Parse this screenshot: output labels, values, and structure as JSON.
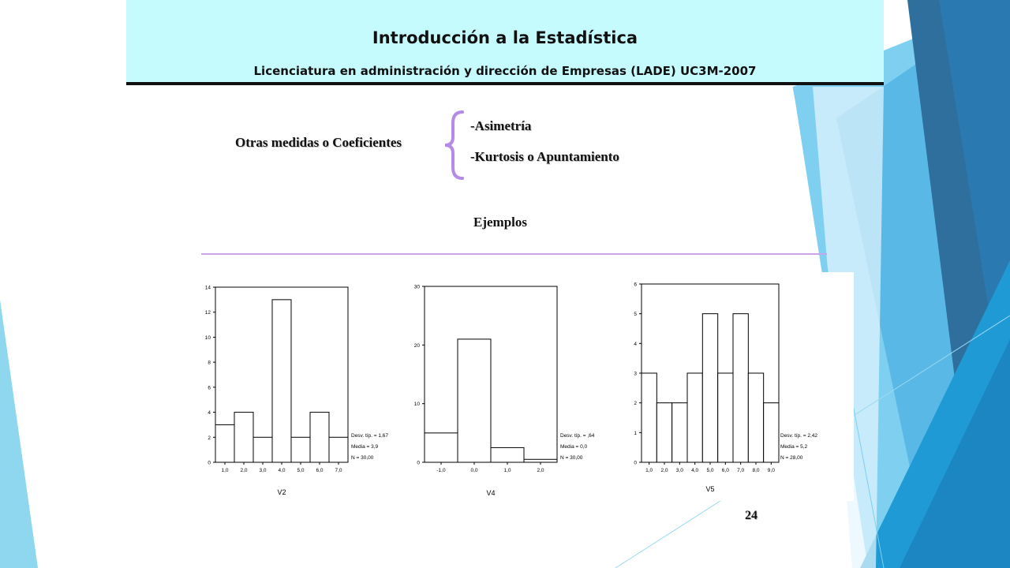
{
  "header": {
    "title": "Introducción a la Estadística",
    "subtitle": "Licenciatura en administración y dirección de Empresas (LADE) UC3M-2007"
  },
  "content": {
    "measures_label": "Otras medidas o Coeficientes",
    "items": [
      "-Asimetría",
      "-Kurtosis o Apuntamiento"
    ],
    "examples_label": "Ejemplos",
    "page_number": "24"
  },
  "colors": {
    "header_bg": "#c6fbfe",
    "brace": "#b48be6",
    "divider": "#c9a6e8",
    "accent_blue": "#29a3d8"
  },
  "chart_data": [
    {
      "type": "bar",
      "categories": [
        "1,0",
        "2,0",
        "3,0",
        "4,0",
        "5,0",
        "6,0",
        "7,0"
      ],
      "values": [
        3,
        4,
        2,
        13,
        2,
        4,
        2
      ],
      "ylim": [
        0,
        14
      ],
      "yticks": [
        0,
        2,
        4,
        6,
        8,
        10,
        12,
        14
      ],
      "xlabel": "V2",
      "stats": [
        "Desv. típ. = 1,67",
        "Media = 3,9",
        "N = 30,00"
      ]
    },
    {
      "type": "bar",
      "categories": [
        "-1,0",
        "0,0",
        "1,0",
        "2,0"
      ],
      "values": [
        5,
        21,
        2.5,
        0.5
      ],
      "ylim": [
        0,
        30
      ],
      "yticks": [
        0,
        10,
        20,
        30
      ],
      "xlabel": "V4",
      "stats": [
        "Desv. típ. = ,64",
        "Media = 0,0",
        "N = 30,00"
      ]
    },
    {
      "type": "bar",
      "categories": [
        "1,0",
        "2,0",
        "3,0",
        "4,0",
        "5,0",
        "6,0",
        "7,0",
        "8,0",
        "9,0"
      ],
      "values": [
        3,
        2,
        2,
        3,
        5,
        3,
        5,
        3,
        2
      ],
      "ylim": [
        0,
        6
      ],
      "yticks": [
        0,
        1,
        2,
        3,
        4,
        5,
        6
      ],
      "xlabel": "V5",
      "stats": [
        "Desv. típ. = 2,42",
        "Media = 5,2",
        "N = 28,00"
      ]
    }
  ]
}
